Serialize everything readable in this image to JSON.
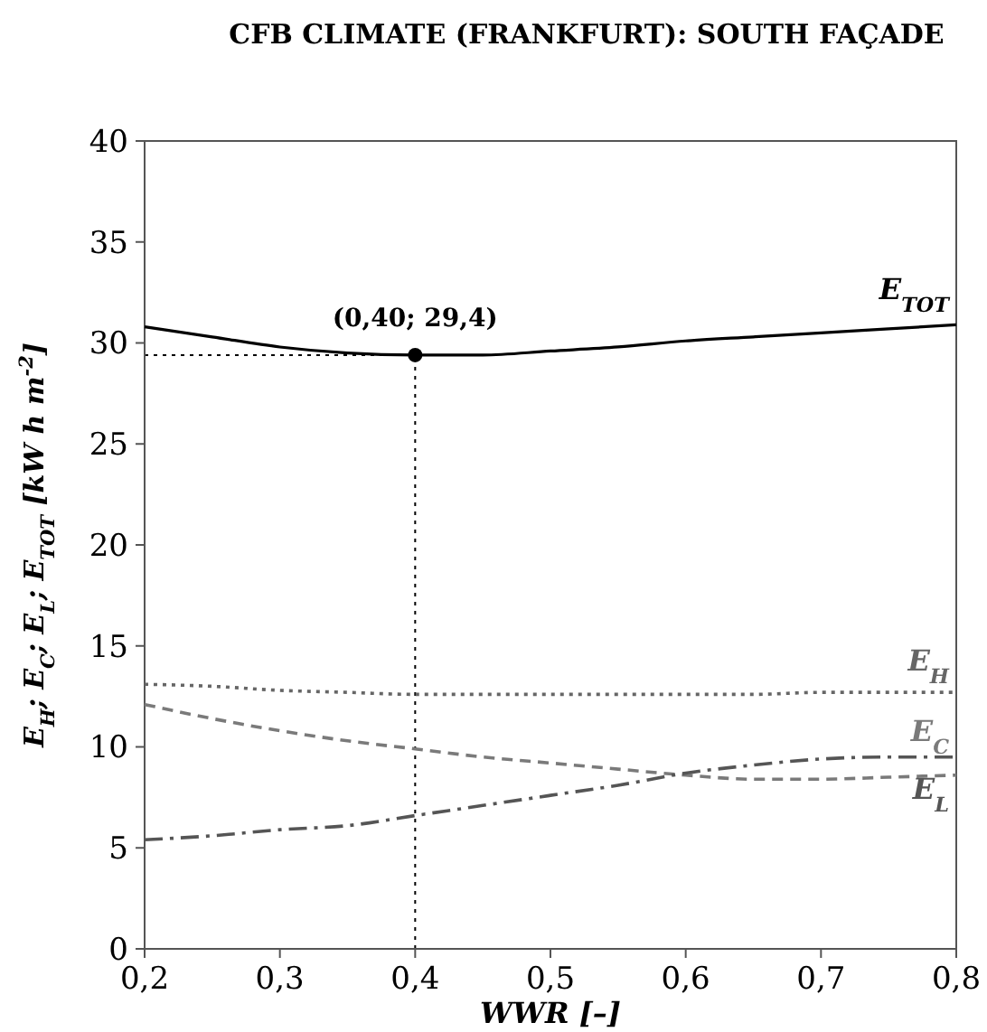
{
  "chart_data": {
    "type": "line",
    "title": "CFB CLIMATE (FRANKFURT): SOUTH FAÇADE",
    "xlabel": "WWR [–]",
    "ylabel": "E$_{H}$; E$_{C}$; E$_{L}$; E$_{TOT}$ [kW h m$^{-2}$]",
    "x": [
      0.2,
      0.25,
      0.3,
      0.35,
      0.4,
      0.45,
      0.5,
      0.55,
      0.6,
      0.65,
      0.7,
      0.75,
      0.8
    ],
    "series": [
      {
        "name": "E$_{TOT}$",
        "color": "#000000",
        "line_style": "solid",
        "values": [
          30.8,
          30.3,
          29.8,
          29.5,
          29.4,
          29.4,
          29.6,
          29.8,
          30.1,
          30.3,
          30.5,
          30.7,
          30.9
        ]
      },
      {
        "name": "E$_{H}$",
        "color": "#666666",
        "line_style": "dotted",
        "values": [
          13.1,
          13.0,
          12.8,
          12.7,
          12.6,
          12.6,
          12.6,
          12.6,
          12.6,
          12.6,
          12.7,
          12.7,
          12.7
        ]
      },
      {
        "name": "E$_{C}$",
        "color": "#7a7a7a",
        "line_style": "dashed",
        "values": [
          12.1,
          11.4,
          10.8,
          10.3,
          9.9,
          9.5,
          9.2,
          8.9,
          8.6,
          8.4,
          8.4,
          8.5,
          8.6
        ]
      },
      {
        "name": "E$_{L}$",
        "color": "#555555",
        "line_style": "dashdot",
        "values": [
          5.4,
          5.6,
          5.9,
          6.1,
          6.6,
          7.1,
          7.6,
          8.1,
          8.7,
          9.1,
          9.4,
          9.5,
          9.5
        ]
      }
    ],
    "xlim": [
      0.2,
      0.8
    ],
    "xticks": [
      {
        "value": 0.2,
        "label": "0,2"
      },
      {
        "value": 0.3,
        "label": "0,3"
      },
      {
        "value": 0.4,
        "label": "0,4"
      },
      {
        "value": 0.5,
        "label": "0,5"
      },
      {
        "value": 0.6,
        "label": "0,6"
      },
      {
        "value": 0.7,
        "label": "0,7"
      },
      {
        "value": 0.8,
        "label": "0,8"
      }
    ],
    "ylim": [
      0,
      40
    ],
    "yticks": [
      0,
      5,
      10,
      15,
      20,
      25,
      30,
      35,
      40
    ],
    "ref_lines": [
      {
        "axis": "x",
        "value": 0.4,
        "line_style": "dotted",
        "color": "#000000"
      },
      {
        "axis": "y",
        "value": 29.4,
        "line_style": "dotted",
        "color": "#000000"
      }
    ],
    "annotations": [
      {
        "text": "(0,40; 29,4)",
        "x": 0.4,
        "y": 29.4
      }
    ],
    "grid": false,
    "legend": false
  }
}
